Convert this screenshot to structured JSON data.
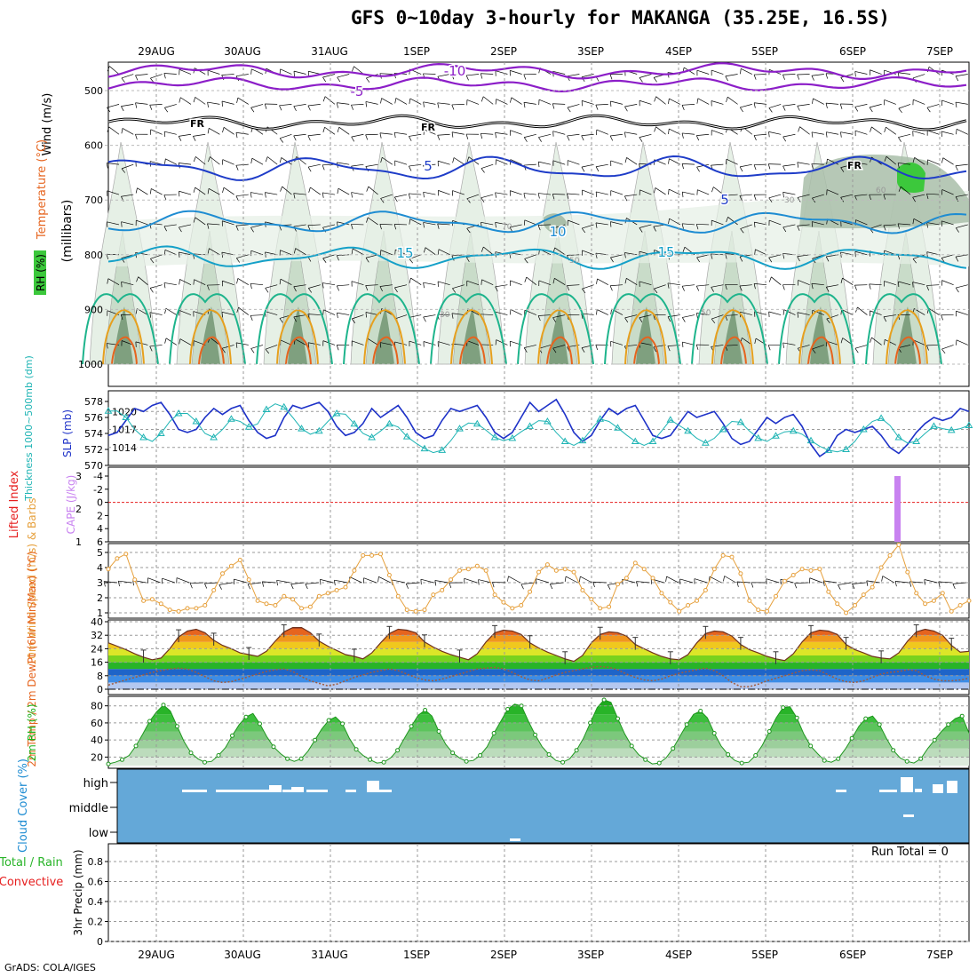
{
  "title": "GFS 0~10day 3-hourly for MAKANGA (35.25E, 16.5S)",
  "footer": "GrADS: COLA/IGES",
  "run_total": "Run Total = 0",
  "colors": {
    "rh_fill": [
      "#e6f0e6",
      "#c9dcc9",
      "#a9bea9",
      "#7fa07f",
      "#3cc83c"
    ],
    "temp_contour_cold": "#8c1ec8",
    "temp_freezing": "#000000",
    "temp_contour_5_15": [
      "#1e3cc8",
      "#1e8cd2",
      "#14a0c8"
    ],
    "temp_contour_warm": [
      "#1eb48c",
      "#28b41e",
      "#e6a01e",
      "#e6641e",
      "#c81e78"
    ],
    "slp": "#1e32c8",
    "thickness": "#1eb4b4",
    "cape": "#c882f0",
    "lifted_index_zero": "#e61e1e",
    "wind10m": "#e6a03c",
    "barbs": "#000000",
    "cloud_bg": "#64a8d8",
    "rh2m": "#1eb41e"
  },
  "chart_data": [
    {
      "type": "heatmap",
      "panel": "upper-air",
      "ylabel_parts": [
        "Wind (m/s)",
        "Temperature (°C)",
        "RH (%)",
        "(millibars)"
      ],
      "ylim": [
        1000,
        460
      ],
      "ticks": [
        "500",
        "600",
        "700",
        "800",
        "900",
        "1000"
      ],
      "contour_labels": [
        "-10",
        "-5",
        "FR",
        "5",
        "10",
        "15",
        "30",
        "50",
        "60",
        "70"
      ]
    },
    {
      "type": "line",
      "panel": "thickness-slp",
      "ylabel_left": "Thickness 1000~500mb (dm)",
      "ylabel_right": "SLP (mb)",
      "left_ticks": [
        "578",
        "576",
        "574",
        "572",
        "570"
      ],
      "right_ticks": [
        "1020",
        "1017",
        "1014"
      ],
      "ylim_left": [
        570,
        579
      ],
      "ylim_right": [
        1011,
        1023
      ],
      "series": [
        {
          "name": "SLP (mb)",
          "values": [
            1016.0,
            1016.5,
            1018.5,
            1020.5,
            1020.0,
            1021.0,
            1021.5,
            1019.5,
            1017.0,
            1016.5,
            1017.0,
            1019.0,
            1020.5,
            1019.5,
            1020.5,
            1021.0,
            1018.5,
            1016.5,
            1015.5,
            1016.0,
            1019.0,
            1021.0,
            1020.5,
            1021.0,
            1021.5,
            1020.0,
            1017.5,
            1016.0,
            1016.5,
            1018.0,
            1020.5,
            1019.0,
            1020.0,
            1021.0,
            1019.0,
            1016.5,
            1015.5,
            1016.0,
            1018.5,
            1020.5,
            1020.0,
            1020.5,
            1021.0,
            1019.0,
            1016.5,
            1015.5,
            1016.5,
            1019.0,
            1021.5,
            1020.0,
            1021.0,
            1022.0,
            1019.5,
            1016.5,
            1015.0,
            1016.0,
            1018.5,
            1020.5,
            1019.5,
            1020.5,
            1021.0,
            1018.5,
            1016.0,
            1015.5,
            1016.0,
            1018.0,
            1020.0,
            1019.0,
            1019.5,
            1020.0,
            1018.0,
            1015.5,
            1014.5,
            1015.0,
            1017.0,
            1019.0,
            1018.0,
            1019.0,
            1019.5,
            1017.5,
            1014.5,
            1012.5,
            1013.5,
            1016.0,
            1017.0,
            1016.5,
            1017.0,
            1017.5,
            1016.0,
            1014.0,
            1013.0,
            1014.5,
            1016.5,
            1018.0,
            1019.0,
            1018.5,
            1019.0,
            1020.5,
            1020.0
          ]
        },
        {
          "name": "Thickness (dm)",
          "values": [
            576.8,
            576.8,
            576.0,
            574.5,
            573.5,
            573.0,
            574.0,
            575.5,
            576.5,
            576.5,
            575.5,
            574.0,
            573.5,
            574.5,
            575.8,
            575.5,
            574.8,
            575.2,
            577.0,
            577.7,
            577.3,
            576.0,
            574.6,
            573.9,
            574.3,
            575.5,
            576.5,
            576.4,
            575.2,
            574.0,
            573.5,
            574.3,
            575.2,
            574.8,
            573.6,
            572.8,
            572.1,
            571.6,
            571.9,
            573.1,
            574.6,
            575.3,
            575.2,
            574.4,
            573.5,
            573.1,
            573.4,
            574.2,
            574.9,
            575.6,
            575.5,
            574.1,
            573.0,
            572.5,
            573.1,
            574.5,
            575.8,
            575.5,
            574.7,
            573.8,
            573.0,
            572.5,
            573.0,
            574.3,
            575.7,
            575.0,
            574.3,
            573.4,
            572.8,
            573.4,
            574.5,
            575.5,
            575.4,
            574.3,
            573.4,
            573.0,
            573.7,
            574.2,
            574.3,
            573.9,
            573.1,
            572.4,
            571.9,
            571.7,
            572.0,
            573.0,
            574.5,
            575.5,
            575.9,
            575.0,
            573.5,
            572.8,
            573.0,
            574.0,
            574.9,
            574.6,
            574.4,
            574.6,
            575.0
          ]
        }
      ]
    },
    {
      "type": "bar",
      "panel": "cape-lifted-index",
      "ylabel_left": "Lifted Index",
      "ylabel_right": "CAPE (J/kg)",
      "left_ticks": [
        "-4",
        "-2",
        "0",
        "2",
        "4",
        "6"
      ],
      "right_ticks": [
        "3",
        "2",
        "1"
      ],
      "cape_bar": {
        "date": "6SEP 12Z",
        "value": 3.0
      }
    },
    {
      "type": "line",
      "panel": "wind10m",
      "ylabel": "10m Wind Speed (m/s) & Barbs",
      "ylim": [
        0.3,
        5.5
      ],
      "ticks": [
        "5",
        "4",
        "3",
        "2",
        "1"
      ],
      "series": [
        {
          "name": "10m Wind Speed",
          "values": [
            3.9,
            4.6,
            4.9,
            3.2,
            1.8,
            1.9,
            1.6,
            1.2,
            1.1,
            1.3,
            1.3,
            1.5,
            2.5,
            3.6,
            4.1,
            4.5,
            3.2,
            1.8,
            1.6,
            1.5,
            2.1,
            1.9,
            1.3,
            1.4,
            2.1,
            2.3,
            2.5,
            2.7,
            3.8,
            4.8,
            4.8,
            4.9,
            3.5,
            2.1,
            1.2,
            1.1,
            1.2,
            2.2,
            2.5,
            3.2,
            3.8,
            3.9,
            4.1,
            3.8,
            2.2,
            1.7,
            1.3,
            1.5,
            2.4,
            3.7,
            4.2,
            3.8,
            3.9,
            3.7,
            2.5,
            1.9,
            1.3,
            1.4,
            2.9,
            3.3,
            4.3,
            3.9,
            3.3,
            2.3,
            1.7,
            1.1,
            1.5,
            1.8,
            2.5,
            3.9,
            4.8,
            4.7,
            3.6,
            1.8,
            1.2,
            1.1,
            2.1,
            3.1,
            3.5,
            3.9,
            3.8,
            3.9,
            2.4,
            1.6,
            1.0,
            1.5,
            2.2,
            2.7,
            4.0,
            4.8,
            5.5,
            3.7,
            2.3,
            1.6,
            1.8,
            2.3,
            1.1,
            1.5,
            1.8
          ]
        }
      ]
    },
    {
      "type": "area",
      "panel": "temperature-2m",
      "ylabel": "2m Temp / 2m DewPt (6hr Min/Max) (°C)",
      "ylim": [
        0,
        40
      ],
      "ticks": [
        "40",
        "32",
        "24",
        "16",
        "8",
        "0"
      ],
      "series": [
        {
          "name": "2m Temp",
          "values": [
            27.5,
            25.5,
            23.5,
            21.0,
            19.0,
            17.5,
            18.5,
            24.0,
            31.0,
            34.5,
            35.5,
            33.5,
            29.0,
            26.0,
            24.0,
            21.5,
            20.5,
            19.5,
            22.5,
            28.5,
            34.0,
            36.5,
            36.5,
            33.5,
            28.5,
            25.5,
            23.0,
            20.5,
            19.5,
            18.0,
            21.5,
            27.5,
            33.0,
            35.5,
            35.0,
            33.5,
            28.0,
            25.0,
            22.5,
            20.5,
            19.0,
            17.5,
            21.0,
            28.0,
            33.5,
            35.0,
            34.5,
            32.5,
            27.5,
            24.5,
            22.0,
            20.0,
            18.0,
            16.5,
            20.0,
            27.5,
            32.5,
            34.0,
            33.5,
            31.5,
            26.5,
            24.0,
            21.5,
            19.5,
            18.0,
            17.5,
            20.5,
            27.5,
            33.0,
            34.5,
            34.0,
            31.5,
            26.5,
            23.5,
            21.5,
            19.5,
            18.0,
            17.0,
            21.0,
            28.0,
            33.5,
            35.0,
            34.5,
            32.5,
            26.5,
            23.5,
            21.5,
            19.5,
            18.5,
            18.0,
            21.5,
            28.5,
            34.0,
            35.5,
            34.5,
            32.0,
            26.0,
            22.0,
            22.5
          ]
        },
        {
          "name": "2m DewPt",
          "values": [
            2.5,
            4.0,
            5.5,
            7.0,
            8.5,
            10.0,
            11.0,
            12.0,
            12.5,
            12.0,
            10.0,
            7.5,
            5.0,
            4.0,
            4.5,
            6.0,
            7.5,
            9.0,
            10.5,
            11.5,
            12.0,
            10.5,
            7.5,
            5.0,
            3.5,
            2.0,
            3.0,
            5.0,
            7.0,
            8.5,
            10.0,
            11.0,
            12.0,
            11.0,
            9.0,
            7.0,
            5.5,
            5.0,
            6.0,
            7.5,
            9.0,
            10.5,
            12.0,
            12.5,
            13.0,
            12.0,
            10.0,
            7.5,
            5.5,
            5.0,
            6.5,
            8.5,
            10.0,
            11.0,
            12.0,
            13.0,
            13.5,
            13.0,
            11.5,
            9.0,
            7.0,
            5.5,
            5.0,
            6.0,
            8.0,
            9.5,
            10.5,
            11.5,
            12.5,
            11.0,
            8.0,
            4.0,
            1.5,
            1.5,
            3.0,
            5.0,
            6.5,
            8.0,
            9.5,
            11.0,
            11.5,
            11.0,
            8.5,
            6.0,
            4.5,
            4.0,
            5.0,
            7.0,
            9.0,
            10.0,
            10.5,
            11.5,
            11.0,
            8.0,
            6.0,
            5.0,
            5.0,
            5.5,
            6.5
          ]
        }
      ]
    },
    {
      "type": "area",
      "panel": "rh-2m",
      "ylabel": "2m RH (%)",
      "ylim": [
        10,
        88
      ],
      "ticks": [
        "80",
        "60",
        "40",
        "20"
      ],
      "series": [
        {
          "name": "2m RH",
          "values": [
            12,
            14,
            17,
            22,
            33,
            47,
            62,
            73,
            81,
            74,
            56,
            38,
            25,
            18,
            14,
            15,
            22,
            31,
            45,
            58,
            67,
            71,
            59,
            44,
            32,
            24,
            18,
            15,
            18,
            27,
            40,
            53,
            63,
            67,
            59,
            42,
            29,
            22,
            17,
            13,
            14,
            19,
            28,
            42,
            56,
            69,
            75,
            68,
            50,
            35,
            25,
            19,
            15,
            16,
            22,
            32,
            48,
            62,
            76,
            82,
            80,
            62,
            46,
            32,
            23,
            16,
            14,
            18,
            28,
            42,
            60,
            78,
            87,
            84,
            65,
            47,
            33,
            23,
            17,
            12,
            13,
            19,
            30,
            44,
            58,
            70,
            74,
            66,
            48,
            33,
            23,
            16,
            13,
            14,
            22,
            34,
            50,
            66,
            78,
            79,
            66,
            47,
            33,
            24,
            16,
            14,
            18,
            29,
            42,
            56,
            65,
            68,
            58,
            42,
            28,
            19,
            15,
            13,
            18,
            30,
            40,
            50,
            58,
            65,
            68,
            48
          ]
        }
      ]
    },
    {
      "type": "bar",
      "panel": "cloud-cover",
      "ylabel": "Cloud Cover (%)",
      "levels": [
        "high",
        "middle",
        "low"
      ]
    },
    {
      "type": "bar",
      "panel": "precipitation",
      "ylabel_left": [
        "Total / Rain",
        "Convective"
      ],
      "ylabel": "3hr Precip (mm)",
      "ylim": [
        0,
        1
      ],
      "ticks": [
        "0.8",
        "0.6",
        "0.4",
        "0.2",
        "0"
      ],
      "values": []
    }
  ],
  "date_labels": [
    "29AUG",
    "30AUG",
    "31AUG",
    "1SEP",
    "2SEP",
    "3SEP",
    "4SEP",
    "5SEP",
    "6SEP",
    "7SEP"
  ]
}
